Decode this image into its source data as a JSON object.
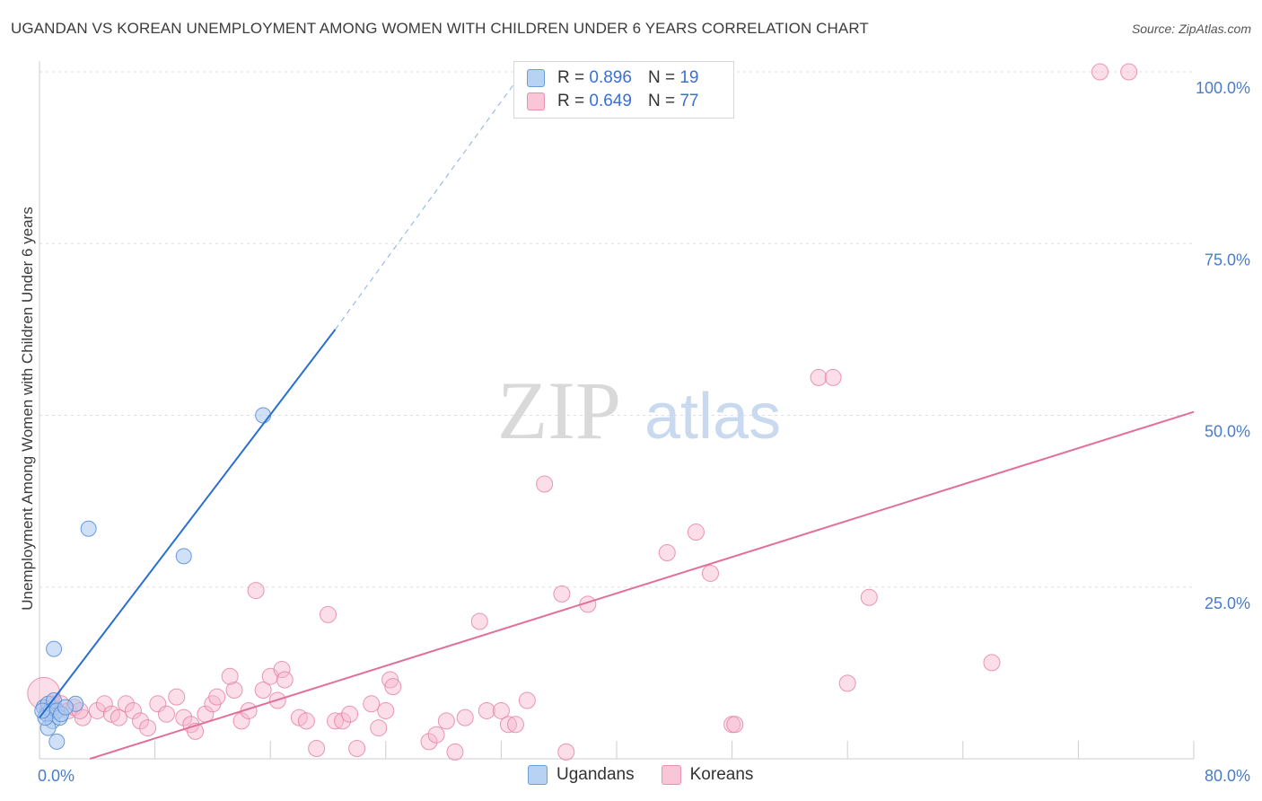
{
  "title": "UGANDAN VS KOREAN UNEMPLOYMENT AMONG WOMEN WITH CHILDREN UNDER 6 YEARS CORRELATION CHART",
  "source": "Source: ZipAtlas.com",
  "watermark": {
    "zip": "ZIP",
    "atlas": "atlas"
  },
  "legend": {
    "rows": [
      {
        "r_label": "R =",
        "r_value": "0.896",
        "n_label": "N =",
        "n_value": "19"
      },
      {
        "r_label": "R =",
        "r_value": "0.649",
        "n_label": "N =",
        "n_value": "77"
      }
    ],
    "bottom": [
      "Ugandans",
      "Koreans"
    ]
  },
  "colors": {
    "ugandans_fill": "#a9c8f0",
    "ugandans_stroke": "#5b8fd6",
    "ugandans_line": "#2a6fcf",
    "koreans_fill": "#f6b6cb",
    "koreans_stroke": "#e57ea0",
    "koreans_line": "#e0709a",
    "tick_label": "#4a7cc9",
    "grid": "#dddddd"
  },
  "chart_data": {
    "type": "scatter",
    "title": "UGANDAN VS KOREAN UNEMPLOYMENT AMONG WOMEN WITH CHILDREN UNDER 6 YEARS CORRELATION CHART",
    "xlabel": "",
    "ylabel": "Unemployment Among Women with Children Under 6 years",
    "xlim": [
      0,
      80
    ],
    "ylim": [
      0,
      100
    ],
    "x_tick_labels": [
      "0.0%",
      "80.0%"
    ],
    "y_tick_labels": [
      "25.0%",
      "50.0%",
      "75.0%",
      "100.0%"
    ],
    "y_ticks": [
      25,
      50,
      75,
      100
    ],
    "grid": true,
    "legend_position": "top-center",
    "series": [
      {
        "name": "Ugandans",
        "r": 0.896,
        "n": 19,
        "points": [
          [
            0.3,
            7.5
          ],
          [
            0.5,
            6.5
          ],
          [
            0.6,
            8.0
          ],
          [
            0.8,
            7.0
          ],
          [
            0.9,
            5.5
          ],
          [
            0.6,
            4.5
          ],
          [
            1.0,
            8.5
          ],
          [
            1.2,
            7.0
          ],
          [
            1.4,
            6.0
          ],
          [
            1.5,
            6.5
          ],
          [
            1.0,
            16.0
          ],
          [
            1.2,
            2.5
          ],
          [
            0.4,
            6.0
          ],
          [
            3.4,
            33.5
          ],
          [
            10.0,
            29.5
          ],
          [
            15.5,
            50.0
          ],
          [
            2.5,
            8.0
          ],
          [
            1.8,
            7.5
          ],
          [
            0.2,
            7.0
          ]
        ],
        "trend": {
          "x0": 0.0,
          "y0": 6.0,
          "x1": 20.5,
          "y1": 62.5,
          "dash_to_x": 33.5,
          "dash_to_y": 100.0
        }
      },
      {
        "name": "Koreans",
        "r": 0.649,
        "n": 77,
        "points": [
          [
            0.3,
            9.5
          ],
          [
            0.6,
            7.0
          ],
          [
            0.9,
            8.0
          ],
          [
            1.2,
            7.0
          ],
          [
            1.5,
            8.0
          ],
          [
            2.0,
            7.0
          ],
          [
            2.4,
            7.5
          ],
          [
            3.0,
            6.0
          ],
          [
            4.0,
            7.0
          ],
          [
            4.5,
            8.0
          ],
          [
            5.0,
            6.5
          ],
          [
            5.5,
            6.0
          ],
          [
            6.0,
            8.0
          ],
          [
            6.5,
            7.0
          ],
          [
            7.0,
            5.5
          ],
          [
            7.5,
            4.5
          ],
          [
            8.2,
            8.0
          ],
          [
            8.8,
            6.5
          ],
          [
            9.5,
            9.0
          ],
          [
            10.0,
            6.0
          ],
          [
            10.5,
            5.0
          ],
          [
            10.8,
            4.0
          ],
          [
            11.5,
            6.5
          ],
          [
            12.0,
            8.0
          ],
          [
            12.3,
            9.0
          ],
          [
            13.5,
            10.0
          ],
          [
            13.2,
            12.0
          ],
          [
            14.0,
            5.5
          ],
          [
            14.5,
            7.0
          ],
          [
            15.0,
            24.5
          ],
          [
            15.5,
            10.0
          ],
          [
            16.0,
            12.0
          ],
          [
            16.5,
            8.5
          ],
          [
            16.8,
            13.0
          ],
          [
            17.0,
            11.5
          ],
          [
            18.0,
            6.0
          ],
          [
            18.5,
            5.5
          ],
          [
            19.2,
            1.5
          ],
          [
            20.0,
            21.0
          ],
          [
            20.5,
            5.5
          ],
          [
            21.0,
            5.5
          ],
          [
            21.5,
            6.5
          ],
          [
            22.0,
            1.5
          ],
          [
            23.0,
            8.0
          ],
          [
            23.5,
            4.5
          ],
          [
            24.0,
            7.0
          ],
          [
            24.3,
            11.5
          ],
          [
            24.5,
            10.5
          ],
          [
            27.0,
            2.5
          ],
          [
            27.5,
            3.5
          ],
          [
            28.2,
            5.5
          ],
          [
            28.8,
            1.0
          ],
          [
            29.5,
            6.0
          ],
          [
            30.5,
            20.0
          ],
          [
            31.0,
            7.0
          ],
          [
            32.0,
            7.0
          ],
          [
            32.5,
            5.0
          ],
          [
            33.0,
            5.0
          ],
          [
            33.8,
            8.5
          ],
          [
            35.0,
            40.0
          ],
          [
            36.5,
            1.0
          ],
          [
            36.2,
            24.0
          ],
          [
            38.0,
            22.5
          ],
          [
            43.5,
            30.0
          ],
          [
            45.5,
            33.0
          ],
          [
            46.5,
            27.0
          ],
          [
            48.0,
            5.0
          ],
          [
            48.2,
            5.0
          ],
          [
            54.0,
            55.5
          ],
          [
            55.0,
            55.5
          ],
          [
            56.0,
            11.0
          ],
          [
            57.5,
            23.5
          ],
          [
            66.0,
            14.0
          ],
          [
            73.5,
            100.0
          ],
          [
            75.5,
            100.0
          ],
          [
            0.9,
            7.5
          ],
          [
            2.8,
            7.0
          ]
        ],
        "trend": {
          "x0": 3.5,
          "y0": 0.0,
          "x1": 80.0,
          "y1": 50.5
        }
      }
    ]
  }
}
